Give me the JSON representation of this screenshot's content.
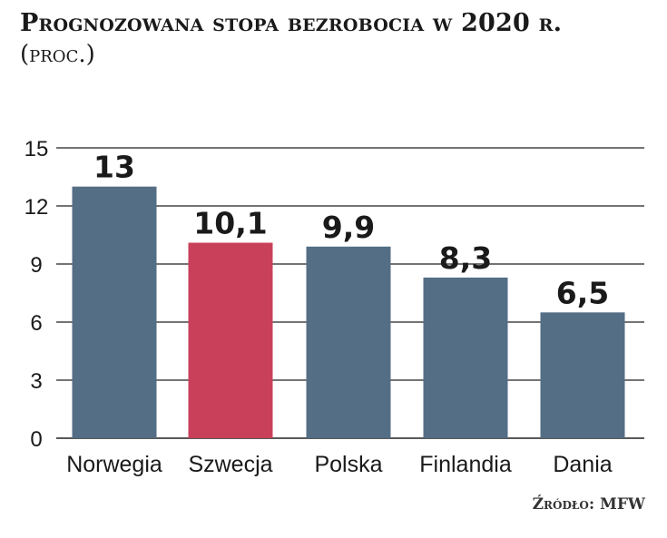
{
  "header": {
    "title": "Prognozowana stopa bezrobocia w 2020 r.",
    "subtitle": "(proc.)"
  },
  "source": "Źródło: MFW",
  "colors": {
    "default_bar": "#546e85",
    "highlight_bar": "#c9405a",
    "grid": "#222222",
    "text": "#1a1a1a"
  },
  "chart_data": {
    "type": "bar",
    "title": "Prognozowana stopa bezrobocia w 2020 r.",
    "subtitle": "(proc.)",
    "categories": [
      "Norwegia",
      "Szwecja",
      "Polska",
      "Finlandia",
      "Dania"
    ],
    "values": [
      13,
      10.1,
      9.9,
      8.3,
      6.5
    ],
    "value_labels": [
      "13",
      "10,1",
      "9,9",
      "8,3",
      "6,5"
    ],
    "highlight": [
      "Szwecja"
    ],
    "ylim": [
      0,
      15
    ],
    "yticks": [
      0,
      3,
      6,
      9,
      12,
      15
    ],
    "grid": true,
    "legend": "none"
  }
}
